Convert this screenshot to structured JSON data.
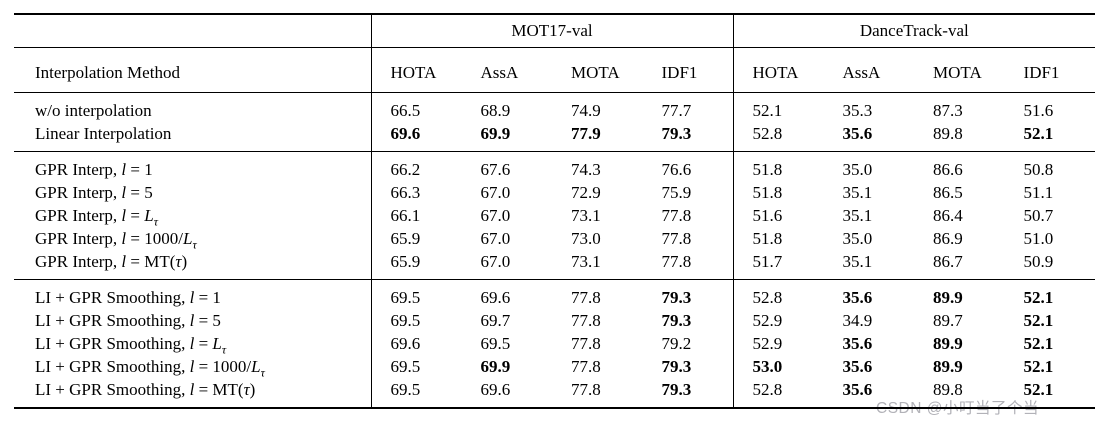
{
  "colors": {
    "text": "#000000",
    "rules": "#000000",
    "background": "#ffffff",
    "watermark": "#b2b2b8"
  },
  "watermark": {
    "text": "CSDN @小叮当了个当"
  },
  "table": {
    "method_header": "Interpolation Method",
    "datasets": [
      "MOT17-val",
      "DanceTrack-val"
    ],
    "metric_headers": [
      "HOTA",
      "AssA",
      "MOTA",
      "IDF1",
      "HOTA",
      "AssA",
      "MOTA",
      "IDF1"
    ],
    "groups": [
      {
        "rows": [
          {
            "label": "w/o interpolation",
            "values": [
              "66.5",
              "68.9",
              "74.9",
              "77.7",
              "52.1",
              "35.3",
              "87.3",
              "51.6"
            ],
            "bold": [
              0,
              0,
              0,
              0,
              0,
              0,
              0,
              0
            ]
          },
          {
            "label": "Linear Interpolation",
            "values": [
              "69.6",
              "69.9",
              "77.9",
              "79.3",
              "52.8",
              "35.6",
              "89.8",
              "52.1"
            ],
            "bold": [
              1,
              1,
              1,
              1,
              0,
              1,
              0,
              1
            ]
          }
        ]
      },
      {
        "rows": [
          {
            "label": "GPR Interp, *l* = 1",
            "values": [
              "66.2",
              "67.6",
              "74.3",
              "76.6",
              "51.8",
              "35.0",
              "86.6",
              "50.8"
            ],
            "bold": [
              0,
              0,
              0,
              0,
              0,
              0,
              0,
              0
            ]
          },
          {
            "label": "GPR Interp, *l* = 5",
            "values": [
              "66.3",
              "67.0",
              "72.9",
              "75.9",
              "51.8",
              "35.1",
              "86.5",
              "51.1"
            ],
            "bold": [
              0,
              0,
              0,
              0,
              0,
              0,
              0,
              0
            ]
          },
          {
            "label": "GPR Interp, *l* = *L*_τ_",
            "values": [
              "66.1",
              "67.0",
              "73.1",
              "77.8",
              "51.6",
              "35.1",
              "86.4",
              "50.7"
            ],
            "bold": [
              0,
              0,
              0,
              0,
              0,
              0,
              0,
              0
            ]
          },
          {
            "label": "GPR Interp, *l* = 1000/*L*_τ_",
            "values": [
              "65.9",
              "67.0",
              "73.0",
              "77.8",
              "51.8",
              "35.0",
              "86.9",
              "51.0"
            ],
            "bold": [
              0,
              0,
              0,
              0,
              0,
              0,
              0,
              0
            ]
          },
          {
            "label": "GPR Interp, *l* = MT(*τ*)",
            "values": [
              "65.9",
              "67.0",
              "73.1",
              "77.8",
              "51.7",
              "35.1",
              "86.7",
              "50.9"
            ],
            "bold": [
              0,
              0,
              0,
              0,
              0,
              0,
              0,
              0
            ]
          }
        ]
      },
      {
        "rows": [
          {
            "label": "LI + GPR Smoothing, *l* = 1",
            "values": [
              "69.5",
              "69.6",
              "77.8",
              "79.3",
              "52.8",
              "35.6",
              "89.9",
              "52.1"
            ],
            "bold": [
              0,
              0,
              0,
              1,
              0,
              1,
              1,
              1
            ]
          },
          {
            "label": "LI + GPR Smoothing, *l* = 5",
            "values": [
              "69.5",
              "69.7",
              "77.8",
              "79.3",
              "52.9",
              "34.9",
              "89.7",
              "52.1"
            ],
            "bold": [
              0,
              0,
              0,
              1,
              0,
              0,
              0,
              1
            ]
          },
          {
            "label": "LI + GPR Smoothing, *l* = *L*_τ_",
            "values": [
              "69.6",
              "69.5",
              "77.8",
              "79.2",
              "52.9",
              "35.6",
              "89.9",
              "52.1"
            ],
            "bold": [
              0,
              0,
              0,
              0,
              0,
              1,
              1,
              1
            ]
          },
          {
            "label": "LI + GPR Smoothing, *l* = 1000/*L*_τ_",
            "values": [
              "69.5",
              "69.9",
              "77.8",
              "79.3",
              "53.0",
              "35.6",
              "89.9",
              "52.1"
            ],
            "bold": [
              0,
              1,
              0,
              1,
              1,
              1,
              1,
              1
            ]
          },
          {
            "label": "LI + GPR Smoothing, *l* = MT(*τ*)",
            "values": [
              "69.5",
              "69.6",
              "77.8",
              "79.3",
              "52.8",
              "35.6",
              "89.8",
              "52.1"
            ],
            "bold": [
              0,
              0,
              0,
              1,
              0,
              1,
              0,
              1
            ]
          }
        ]
      }
    ]
  }
}
